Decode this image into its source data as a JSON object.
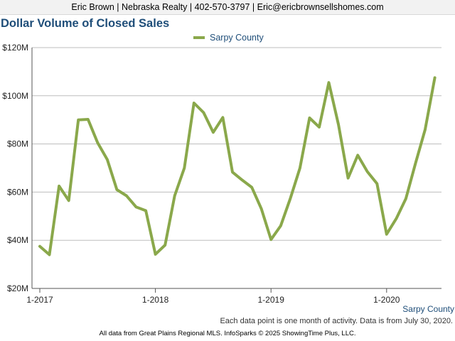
{
  "header": {
    "text": "Eric Brown | Nebraska Realty | 402-570-3797 | Eric@ericbrownsellshomes.com"
  },
  "chart_data": {
    "type": "line",
    "title": "Dollar Volume of Closed Sales",
    "legend_position": "top-center",
    "grid": true,
    "ylim": [
      20,
      120
    ],
    "y_unit": "$M",
    "y_ticks": [
      {
        "value": 20,
        "label": "$20M"
      },
      {
        "value": 40,
        "label": "$40M"
      },
      {
        "value": 60,
        "label": "$60M"
      },
      {
        "value": 80,
        "label": "$80M"
      },
      {
        "value": 100,
        "label": "$100M"
      },
      {
        "value": 120,
        "label": "$120M"
      }
    ],
    "x_ticks": [
      {
        "value": "2017-01",
        "label": "1-2017"
      },
      {
        "value": "2018-01",
        "label": "1-2018"
      },
      {
        "value": "2019-01",
        "label": "1-2019"
      },
      {
        "value": "2020-01",
        "label": "1-2020"
      }
    ],
    "x": [
      "2017-01",
      "2017-02",
      "2017-03",
      "2017-04",
      "2017-05",
      "2017-06",
      "2017-07",
      "2017-08",
      "2017-09",
      "2017-10",
      "2017-11",
      "2017-12",
      "2018-01",
      "2018-02",
      "2018-03",
      "2018-04",
      "2018-05",
      "2018-06",
      "2018-07",
      "2018-08",
      "2018-09",
      "2018-10",
      "2018-11",
      "2018-12",
      "2019-01",
      "2019-02",
      "2019-03",
      "2019-04",
      "2019-05",
      "2019-06",
      "2019-07",
      "2019-08",
      "2019-09",
      "2019-10",
      "2019-11",
      "2019-12",
      "2020-01",
      "2020-02",
      "2020-03",
      "2020-04",
      "2020-05",
      "2020-06"
    ],
    "series": [
      {
        "name": "Sarpy County",
        "color": "#8aa84b",
        "values": [
          37.5,
          34.0,
          62.5,
          56.5,
          90.0,
          90.2,
          80.5,
          73.5,
          61.0,
          58.5,
          53.8,
          52.3,
          34.2,
          38.0,
          58.5,
          70.0,
          97.0,
          93.0,
          84.8,
          91.0,
          68.3,
          65.0,
          62.0,
          53.0,
          40.3,
          46.0,
          57.3,
          70.0,
          90.8,
          87.0,
          105.5,
          88.0,
          65.8,
          75.3,
          68.5,
          63.5,
          42.5,
          49.0,
          57.3,
          72.0,
          86.0,
          107.5
        ]
      }
    ]
  },
  "area_label": "Sarpy County",
  "note": "Each data point is one month of activity. Data is from July 30, 2020.",
  "footer": "All data from Great Plains Regional MLS. InfoSparks © 2025 ShowingTime Plus, LLC."
}
